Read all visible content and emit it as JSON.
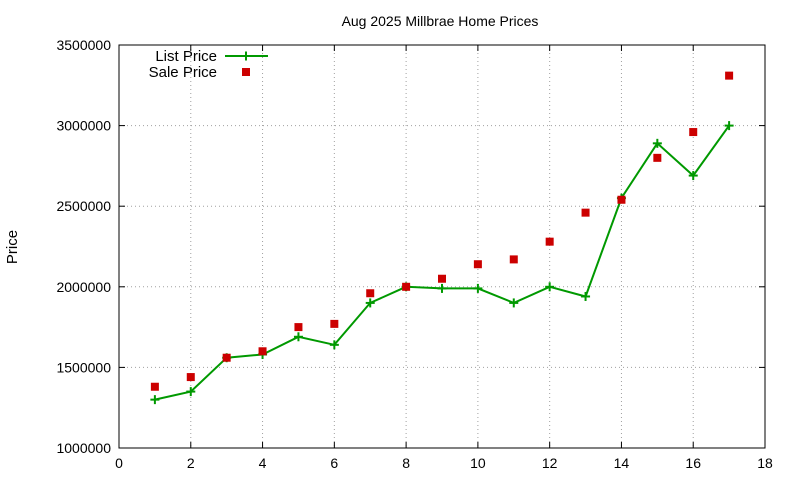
{
  "chart_data": {
    "type": "line",
    "title": "Aug 2025 Millbrae Home Prices",
    "xlabel": "",
    "ylabel": "Price",
    "xlim": [
      0,
      18
    ],
    "ylim": [
      1000000,
      3500000
    ],
    "x_ticks": [
      0,
      2,
      4,
      6,
      8,
      10,
      12,
      14,
      16,
      18
    ],
    "y_ticks": [
      1000000,
      1500000,
      2000000,
      2500000,
      3000000,
      3500000
    ],
    "grid": true,
    "legend_position": "top-left",
    "series": [
      {
        "name": "List Price",
        "style": "line-with-plus-markers",
        "color": "#009900",
        "x": [
          1,
          2,
          3,
          4,
          5,
          6,
          7,
          8,
          9,
          10,
          11,
          12,
          13,
          14,
          15,
          16,
          17
        ],
        "y": [
          1300000,
          1350000,
          1560000,
          1580000,
          1690000,
          1640000,
          1900000,
          2000000,
          1990000,
          1990000,
          1900000,
          2000000,
          1940000,
          2550000,
          2890000,
          2690000,
          3000000
        ]
      },
      {
        "name": "Sale Price",
        "style": "square-markers",
        "color": "#cc0000",
        "x": [
          1,
          2,
          3,
          4,
          5,
          6,
          7,
          8,
          9,
          10,
          11,
          12,
          13,
          14,
          15,
          16,
          17
        ],
        "y": [
          1380000,
          1440000,
          1560000,
          1600000,
          1750000,
          1770000,
          1960000,
          2000000,
          2050000,
          2140000,
          2170000,
          2280000,
          2460000,
          2540000,
          2800000,
          2960000,
          3310000
        ]
      }
    ]
  }
}
